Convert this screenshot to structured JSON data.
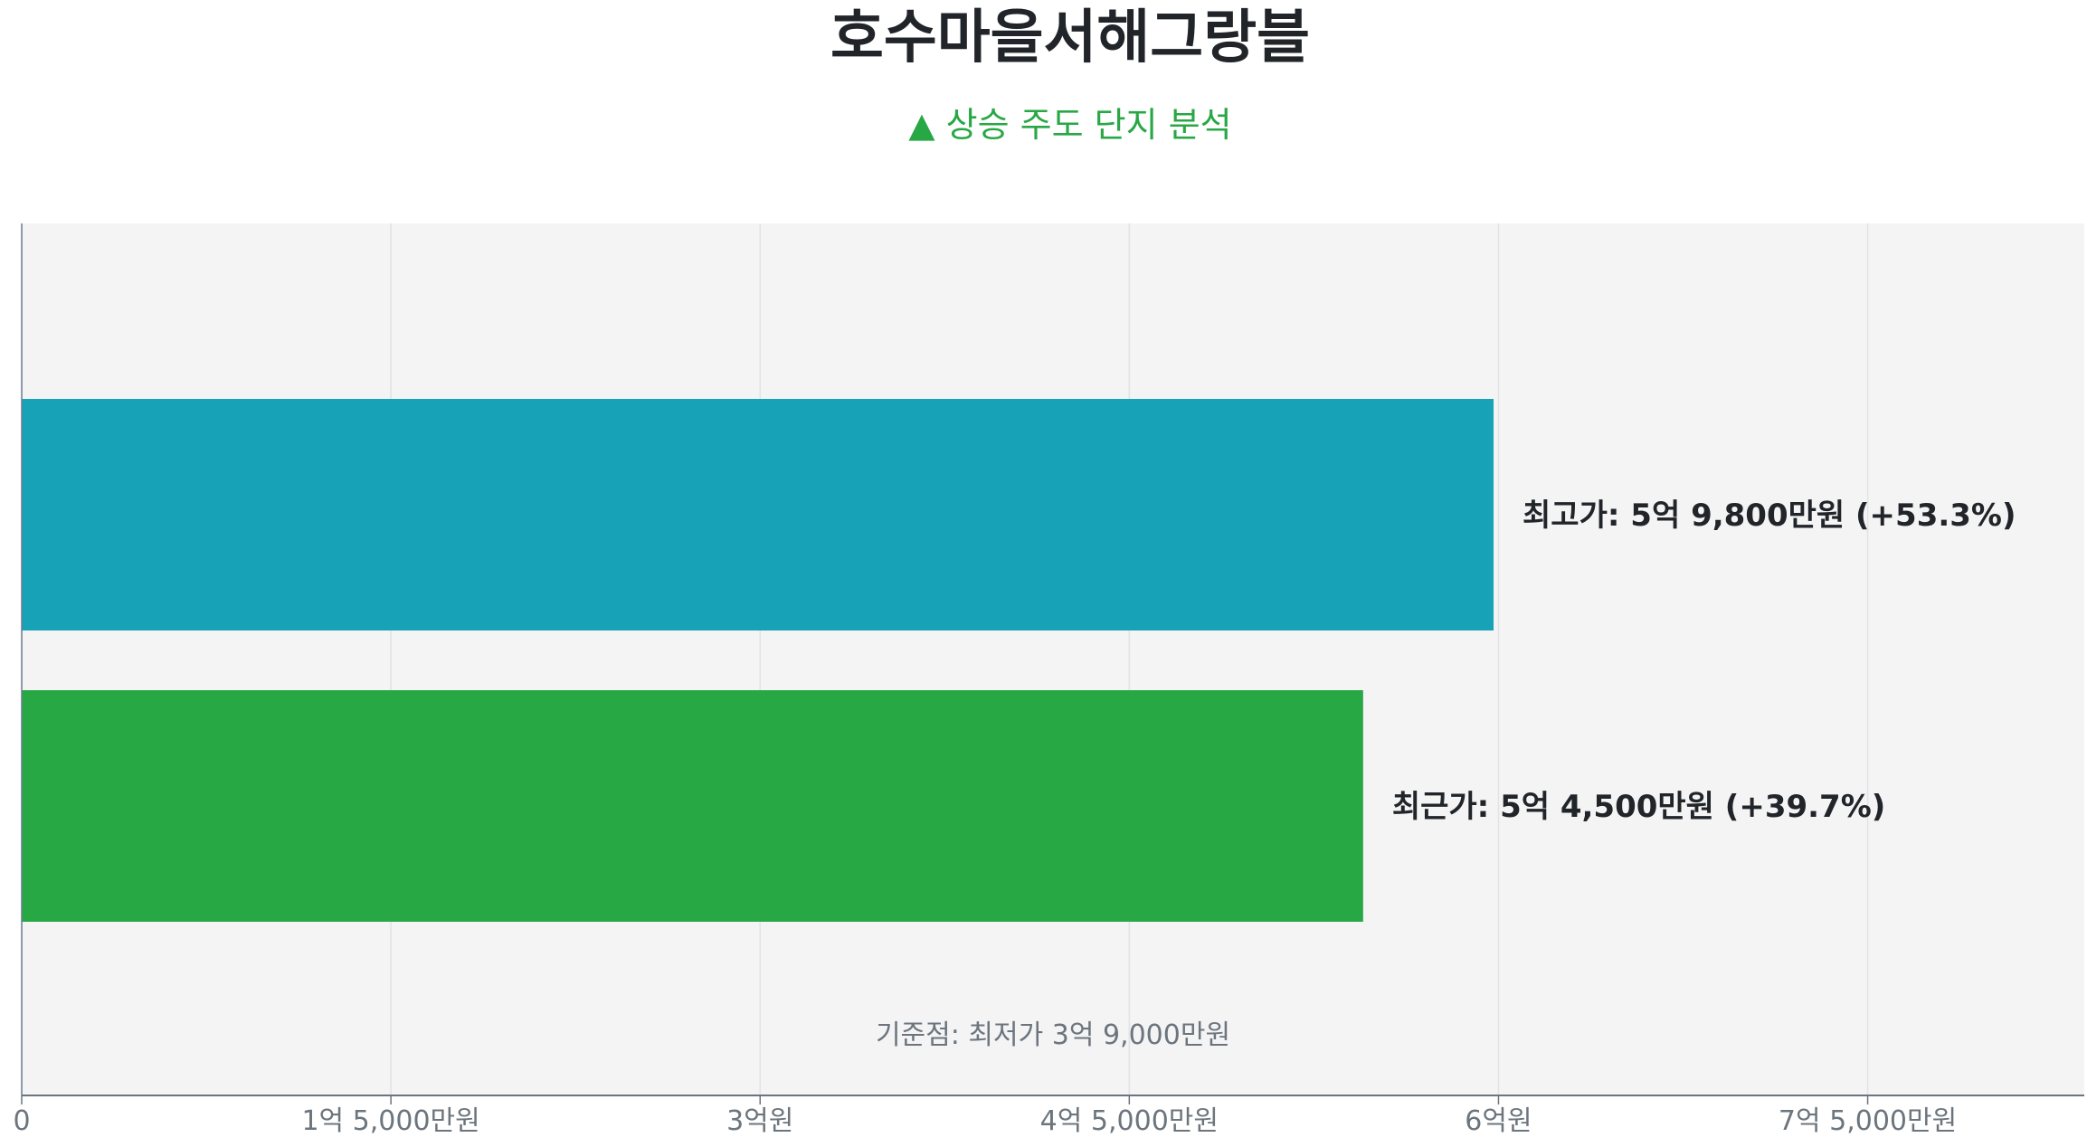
{
  "chart_data": {
    "type": "bar",
    "orientation": "horizontal",
    "title": "호수마을서해그랑블",
    "subtitle": "▲ 상승 주도 단지 분석",
    "unit": "억원",
    "xlim": [
      0,
      8.38
    ],
    "grid": true,
    "x_ticks": [
      {
        "value": 0,
        "label": "0"
      },
      {
        "value": 1.5,
        "label": "1억 5,000만원"
      },
      {
        "value": 3,
        "label": "3억원"
      },
      {
        "value": 4.5,
        "label": "4억 5,000만원"
      },
      {
        "value": 6,
        "label": "6억원"
      },
      {
        "value": 7.5,
        "label": "7억 5,000만원"
      }
    ],
    "bars": [
      {
        "value": 5.98,
        "label": "최고가: 5억 9,800만원 (+53.3%)",
        "color": "#17a2b8"
      },
      {
        "value": 5.45,
        "label": "최근가: 5억 4,500만원 (+39.7%)",
        "color": "#28a745"
      }
    ],
    "annotation": "기준점: 최저가 3억 9,000만원",
    "plot_background": "#f4f4f5"
  }
}
